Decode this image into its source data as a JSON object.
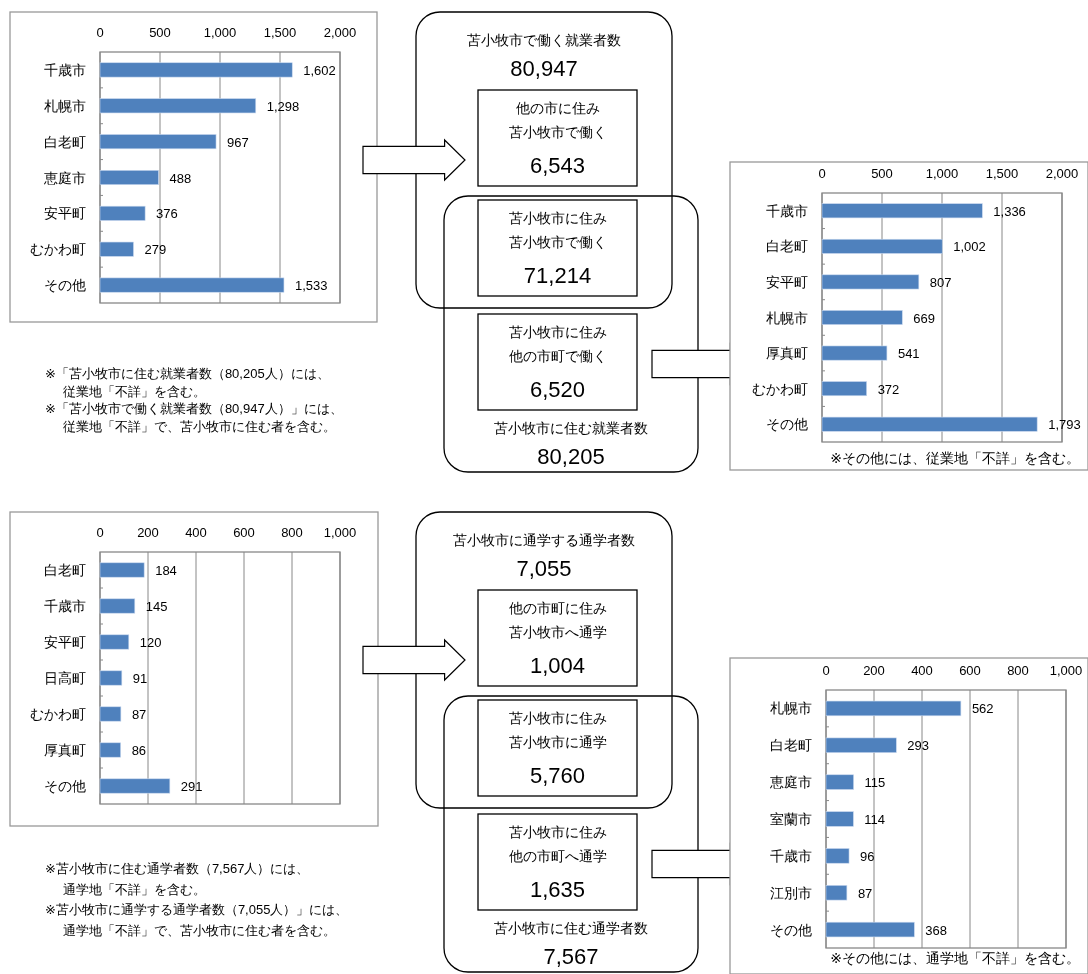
{
  "chart_data": [
    {
      "type": "bar",
      "orientation": "horizontal",
      "categories": [
        "千歳市",
        "札幌市",
        "白老町",
        "恵庭市",
        "安平町",
        "むかわ町",
        "その他"
      ],
      "values": [
        1602,
        1298,
        967,
        488,
        376,
        279,
        1533
      ],
      "value_labels": [
        "1,602",
        "1,298",
        "967",
        "488",
        "376",
        "279",
        "1,533"
      ],
      "color": "#4f81bd",
      "xlim": [
        0,
        2000
      ],
      "xticks": [
        0,
        500,
        {
          "value": 1000,
          "label": "1,000"
        },
        {
          "value": 1500,
          "label": "1,500"
        },
        {
          "value": 2000,
          "label": "2,000"
        }
      ],
      "grid": "x",
      "annotations": [
        "※「苫小牧市に住む就業者数（80,205人）には、",
        "従業地「不詳」を含む。",
        "※「苫小牧市で働く就業者数（80,947人）」には、",
        "従業地「不詳」で、苫小牧市に住む者を含む。"
      ]
    },
    {
      "type": "other",
      "annotations": [
        "苫小牧市で働く就業者数",
        "他の市に住み",
        "苫小牧市で働く",
        "苫小牧市に住み",
        "苫小牧市で働く",
        "苫小牧市に住み",
        "他の市町で働く",
        "苫小牧市に住む就業者数"
      ],
      "values": [
        80947,
        6543,
        71214,
        6520,
        80205
      ],
      "value_labels": [
        "80,947",
        "6,543",
        "71,214",
        "6,520",
        "80,205"
      ]
    },
    {
      "type": "bar",
      "orientation": "horizontal",
      "categories": [
        "千歳市",
        "白老町",
        "安平町",
        "札幌市",
        "厚真町",
        "むかわ町",
        "その他"
      ],
      "values": [
        1336,
        1002,
        807,
        669,
        541,
        372,
        1793
      ],
      "value_labels": [
        "1,336",
        "1,002",
        "807",
        "669",
        "541",
        "372",
        "1,793"
      ],
      "color": "#4f81bd",
      "xlim": [
        0,
        2000
      ],
      "xticks": [
        0,
        500,
        {
          "value": 1000,
          "label": "1,000"
        },
        {
          "value": 1500,
          "label": "1,500"
        },
        {
          "value": 2000,
          "label": "2,000"
        }
      ],
      "grid": "x",
      "annotations": [
        "※その他には、従業地「不詳」を含む。"
      ]
    },
    {
      "type": "bar",
      "orientation": "horizontal",
      "categories": [
        "白老町",
        "千歳市",
        "安平町",
        "日高町",
        "むかわ町",
        "厚真町",
        "その他"
      ],
      "values": [
        184,
        145,
        120,
        91,
        87,
        86,
        291
      ],
      "value_labels": [
        "184",
        "145",
        "120",
        "91",
        "87",
        "86",
        "291"
      ],
      "color": "#4f81bd",
      "xlim": [
        0,
        1000
      ],
      "xticks": [
        0,
        200,
        400,
        600,
        800,
        {
          "value": 1000,
          "label": "1,000"
        }
      ],
      "grid": "x",
      "annotations": [
        "※苫小牧市に住む通学者数（7,567人）には、",
        "通学地「不詳」を含む。",
        "※苫小牧市に通学する通学者数（7,055人）」には、",
        "通学地「不詳」で、苫小牧市に住む者を含む。"
      ]
    },
    {
      "type": "other",
      "annotations": [
        "苫小牧市に通学する通学者数",
        "他の市町に住み",
        "苫小牧市へ通学",
        "苫小牧市に住み",
        "苫小牧市に通学",
        "苫小牧市に住み",
        "他の市町へ通学",
        "苫小牧市に住む通学者数"
      ],
      "values": [
        7055,
        1004,
        5760,
        1635,
        7567
      ],
      "value_labels": [
        "7,055",
        "1,004",
        "5,760",
        "1,635",
        "7,567"
      ]
    },
    {
      "type": "bar",
      "orientation": "horizontal",
      "categories": [
        "札幌市",
        "白老町",
        "恵庭市",
        "室蘭市",
        "千歳市",
        "江別市",
        "その他"
      ],
      "values": [
        562,
        293,
        115,
        114,
        96,
        87,
        368
      ],
      "value_labels": [
        "562",
        "293",
        "115",
        "114",
        "96",
        "87",
        "368"
      ],
      "color": "#4f81bd",
      "xlim": [
        0,
        1000
      ],
      "xticks": [
        0,
        200,
        400,
        600,
        800,
        {
          "value": 1000,
          "label": "1,000"
        }
      ],
      "grid": "x",
      "annotations": [
        "※その他には、通学地「不詳」を含む。"
      ]
    }
  ]
}
